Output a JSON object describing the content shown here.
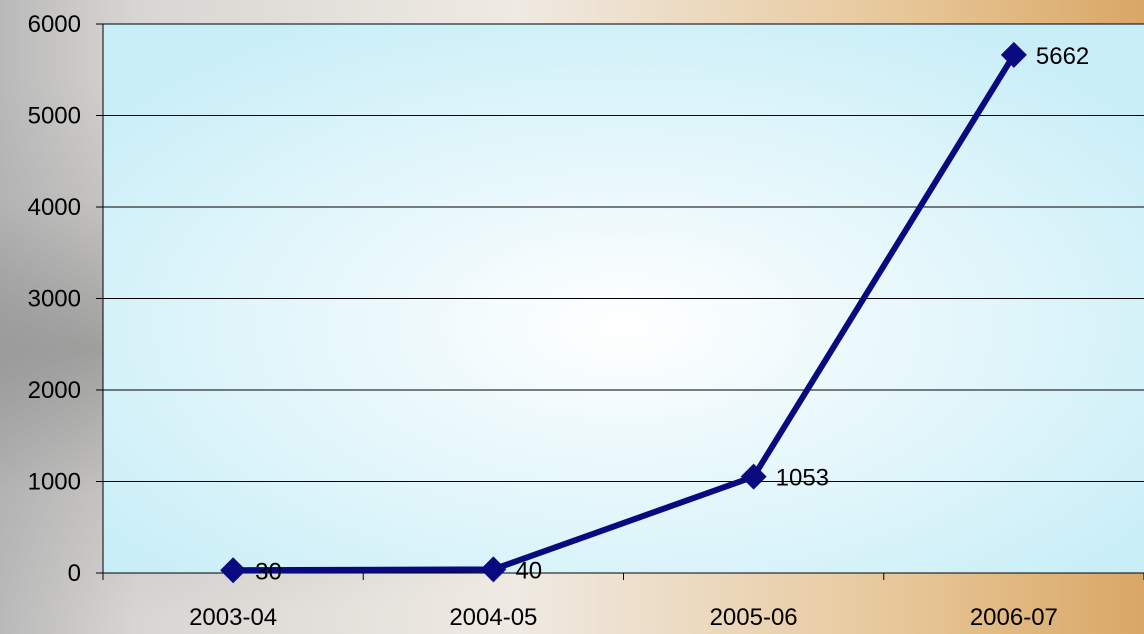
{
  "chart_data": {
    "type": "line",
    "categories": [
      "2003-04",
      "2004-05",
      "2005-06",
      "2006-07"
    ],
    "series": [
      {
        "values": [
          30,
          40,
          1053,
          5662
        ]
      }
    ],
    "data_labels": [
      "30",
      "40",
      "1053",
      "5662"
    ],
    "y_ticks": [
      "0",
      "1000",
      "2000",
      "3000",
      "4000",
      "5000",
      "6000"
    ],
    "ylim": [
      0,
      6000
    ],
    "title": "",
    "xlabel": "",
    "ylabel": "",
    "grid": true,
    "legend": "none",
    "marker": "diamond",
    "colors": {
      "line": "#0a0a80",
      "plot_bg_center": "#ffffff",
      "plot_bg_edge": "#c8eef7",
      "gridline": "#000000"
    }
  }
}
